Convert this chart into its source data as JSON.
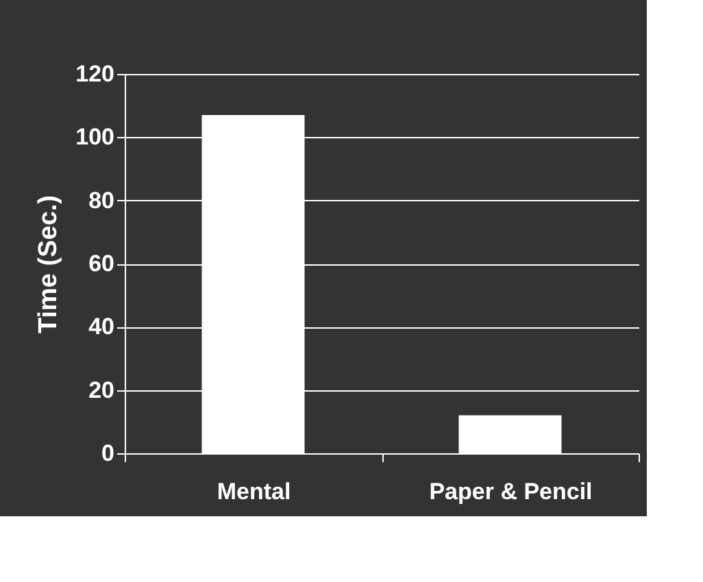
{
  "chart_data": {
    "type": "bar",
    "categories": [
      "Mental",
      "Paper & Pencil"
    ],
    "values": [
      107,
      12
    ],
    "color": "#ffffff",
    "ylabel": "Time (Sec.)",
    "ylim": [
      0,
      120
    ],
    "yticks": [
      0,
      20,
      40,
      60,
      80,
      100,
      120
    ],
    "grid": "y"
  }
}
